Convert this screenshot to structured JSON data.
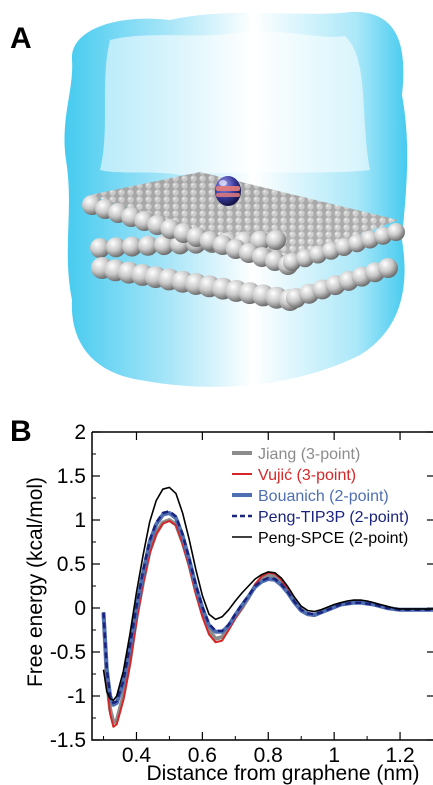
{
  "figure": {
    "panel_a_label": "A",
    "panel_b_label": "B"
  },
  "panel_a": {
    "icons": [
      "water-box-icon",
      "graphene-bilayer-icon",
      "ion-probe-icon"
    ],
    "colors": {
      "water": "#35c6ee",
      "graphene": "#b0b0b0",
      "ion": "#3a3a9a",
      "ion_band": "#e07a7a"
    }
  },
  "chart_data": {
    "type": "line",
    "xlabel": "Distance from graphene (nm)",
    "ylabel": "Free energy (kcal/mol)",
    "xlim": [
      0.265,
      1.3
    ],
    "ylim": [
      -1.5,
      2
    ],
    "xticks": [
      0.4,
      0.6,
      0.8,
      1,
      1.2
    ],
    "xtick_labels": [
      "0.4",
      "0.6",
      "0.8",
      "1",
      "1.2"
    ],
    "yticks": [
      -1.5,
      -1,
      -0.5,
      0,
      0.5,
      1,
      1.5,
      2
    ],
    "ytick_labels": [
      "-1.5",
      "-1",
      "-0.5",
      "0",
      "0.5",
      "1",
      "1.5",
      "2"
    ],
    "grid": false,
    "legend_position": "top-right",
    "series": [
      {
        "name": "Jiang (3-point)",
        "color": "#8c8c8c",
        "dash": "solid",
        "width": 4,
        "x": [
          0.3,
          0.31,
          0.32,
          0.33,
          0.34,
          0.36,
          0.38,
          0.4,
          0.42,
          0.44,
          0.46,
          0.48,
          0.5,
          0.52,
          0.54,
          0.56,
          0.58,
          0.6,
          0.62,
          0.64,
          0.66,
          0.68,
          0.7,
          0.72,
          0.74,
          0.76,
          0.78,
          0.8,
          0.82,
          0.84,
          0.86,
          0.88,
          0.9,
          0.92,
          0.94,
          0.96,
          0.98,
          1,
          1.02,
          1.04,
          1.06,
          1.08,
          1.1,
          1.12,
          1.14,
          1.16,
          1.18,
          1.2,
          1.22,
          1.24,
          1.26,
          1.28,
          1.3
        ],
        "y": [
          -0.05,
          -0.8,
          -1.15,
          -1.3,
          -1.28,
          -1.0,
          -0.6,
          -0.1,
          0.3,
          0.65,
          0.85,
          0.97,
          1.0,
          0.95,
          0.75,
          0.5,
          0.2,
          -0.05,
          -0.25,
          -0.35,
          -0.33,
          -0.22,
          -0.1,
          0.0,
          0.12,
          0.25,
          0.33,
          0.37,
          0.36,
          0.3,
          0.2,
          0.08,
          -0.02,
          -0.07,
          -0.08,
          -0.05,
          -0.02,
          0.01,
          0.04,
          0.06,
          0.07,
          0.07,
          0.06,
          0.04,
          0.02,
          0.0,
          -0.01,
          -0.02,
          -0.02,
          -0.02,
          -0.02,
          -0.02,
          -0.02
        ]
      },
      {
        "name": "Vujić (3-point)",
        "color": "#d62728",
        "dash": "solid",
        "width": 2,
        "x": [
          0.3,
          0.31,
          0.32,
          0.33,
          0.34,
          0.36,
          0.38,
          0.4,
          0.42,
          0.44,
          0.46,
          0.48,
          0.5,
          0.52,
          0.54,
          0.56,
          0.58,
          0.6,
          0.62,
          0.64,
          0.66,
          0.68,
          0.7,
          0.72,
          0.74,
          0.76,
          0.78,
          0.8,
          0.82,
          0.84,
          0.86,
          0.88,
          0.9,
          0.92,
          0.94,
          0.96,
          0.98,
          1,
          1.02,
          1.04,
          1.06,
          1.08,
          1.1,
          1.12,
          1.14,
          1.16,
          1.18,
          1.2,
          1.22,
          1.24,
          1.26,
          1.28,
          1.3
        ],
        "y": [
          -0.05,
          -0.85,
          -1.2,
          -1.35,
          -1.32,
          -1.05,
          -0.65,
          -0.15,
          0.28,
          0.62,
          0.84,
          0.96,
          0.99,
          0.94,
          0.73,
          0.47,
          0.16,
          -0.1,
          -0.3,
          -0.39,
          -0.37,
          -0.25,
          -0.12,
          0.0,
          0.13,
          0.27,
          0.36,
          0.4,
          0.39,
          0.32,
          0.2,
          0.07,
          -0.03,
          -0.08,
          -0.09,
          -0.06,
          -0.02,
          0.01,
          0.04,
          0.06,
          0.07,
          0.07,
          0.06,
          0.04,
          0.02,
          0.0,
          -0.01,
          -0.02,
          -0.02,
          -0.02,
          -0.02,
          -0.02,
          -0.02
        ]
      },
      {
        "name": "Bouanich (2-point)",
        "color": "#4f6fb3",
        "dash": "solid",
        "width": 4,
        "x": [
          0.3,
          0.31,
          0.32,
          0.33,
          0.34,
          0.36,
          0.38,
          0.4,
          0.42,
          0.44,
          0.46,
          0.48,
          0.5,
          0.52,
          0.54,
          0.56,
          0.58,
          0.6,
          0.62,
          0.64,
          0.66,
          0.68,
          0.7,
          0.72,
          0.74,
          0.76,
          0.78,
          0.8,
          0.82,
          0.84,
          0.86,
          0.88,
          0.9,
          0.92,
          0.94,
          0.96,
          0.98,
          1,
          1.02,
          1.04,
          1.06,
          1.08,
          1.1,
          1.12,
          1.14,
          1.16,
          1.18,
          1.2,
          1.22,
          1.24,
          1.26,
          1.28,
          1.3
        ],
        "y": [
          -0.05,
          -0.7,
          -1.0,
          -1.1,
          -1.08,
          -0.85,
          -0.45,
          0.0,
          0.4,
          0.75,
          0.95,
          1.06,
          1.08,
          1.02,
          0.82,
          0.55,
          0.25,
          0.0,
          -0.2,
          -0.27,
          -0.27,
          -0.2,
          -0.08,
          0.03,
          0.13,
          0.24,
          0.3,
          0.33,
          0.32,
          0.26,
          0.17,
          0.06,
          -0.03,
          -0.07,
          -0.08,
          -0.05,
          -0.02,
          0.01,
          0.04,
          0.05,
          0.06,
          0.06,
          0.05,
          0.04,
          0.02,
          0.0,
          -0.01,
          -0.02,
          -0.02,
          -0.02,
          -0.02,
          -0.02,
          -0.02
        ]
      },
      {
        "name": "Peng-TIP3P (2-point)",
        "color": "#1a237e",
        "dash": "dashed",
        "width": 2.5,
        "x": [
          0.3,
          0.31,
          0.32,
          0.33,
          0.34,
          0.36,
          0.38,
          0.4,
          0.42,
          0.44,
          0.46,
          0.48,
          0.5,
          0.52,
          0.54,
          0.56,
          0.58,
          0.6,
          0.62,
          0.64,
          0.66,
          0.68,
          0.7,
          0.72,
          0.74,
          0.76,
          0.78,
          0.8,
          0.82,
          0.84,
          0.86,
          0.88,
          0.9,
          0.92,
          0.94,
          0.96,
          0.98,
          1,
          1.02,
          1.04,
          1.06,
          1.08,
          1.1,
          1.12,
          1.14,
          1.16,
          1.18,
          1.2,
          1.22,
          1.24,
          1.26,
          1.28,
          1.3
        ],
        "y": [
          -0.05,
          -0.7,
          -1.0,
          -1.08,
          -1.06,
          -0.83,
          -0.43,
          0.02,
          0.42,
          0.77,
          0.97,
          1.08,
          1.1,
          1.04,
          0.84,
          0.56,
          0.26,
          0.01,
          -0.18,
          -0.26,
          -0.26,
          -0.19,
          -0.07,
          0.04,
          0.14,
          0.25,
          0.31,
          0.34,
          0.33,
          0.27,
          0.18,
          0.07,
          -0.02,
          -0.06,
          -0.07,
          -0.05,
          -0.02,
          0.01,
          0.04,
          0.05,
          0.06,
          0.06,
          0.05,
          0.04,
          0.02,
          0.0,
          -0.01,
          -0.02,
          -0.02,
          -0.02,
          -0.02,
          -0.02,
          -0.02
        ]
      },
      {
        "name": "Peng-SPCE (2-point)",
        "color": "#000000",
        "dash": "solid",
        "width": 1.6,
        "x": [
          0.3,
          0.31,
          0.32,
          0.33,
          0.34,
          0.36,
          0.38,
          0.4,
          0.42,
          0.44,
          0.46,
          0.48,
          0.5,
          0.52,
          0.54,
          0.56,
          0.58,
          0.6,
          0.62,
          0.64,
          0.66,
          0.68,
          0.7,
          0.72,
          0.74,
          0.76,
          0.78,
          0.8,
          0.82,
          0.84,
          0.86,
          0.88,
          0.9,
          0.92,
          0.94,
          0.96,
          0.98,
          1,
          1.02,
          1.04,
          1.06,
          1.08,
          1.1,
          1.12,
          1.14,
          1.16,
          1.18,
          1.2,
          1.22,
          1.24,
          1.26,
          1.28,
          1.3
        ],
        "y": [
          -0.7,
          -0.95,
          -1.03,
          -1.05,
          -1.0,
          -0.72,
          -0.3,
          0.18,
          0.6,
          0.98,
          1.22,
          1.35,
          1.37,
          1.3,
          1.08,
          0.78,
          0.44,
          0.14,
          -0.07,
          -0.13,
          -0.1,
          -0.02,
          0.08,
          0.17,
          0.25,
          0.33,
          0.38,
          0.41,
          0.4,
          0.34,
          0.24,
          0.12,
          0.02,
          -0.03,
          -0.04,
          -0.02,
          0.01,
          0.04,
          0.06,
          0.08,
          0.09,
          0.09,
          0.08,
          0.06,
          0.04,
          0.02,
          0.0,
          -0.01,
          -0.01,
          -0.01,
          -0.01,
          -0.01,
          -0.01
        ]
      }
    ]
  }
}
